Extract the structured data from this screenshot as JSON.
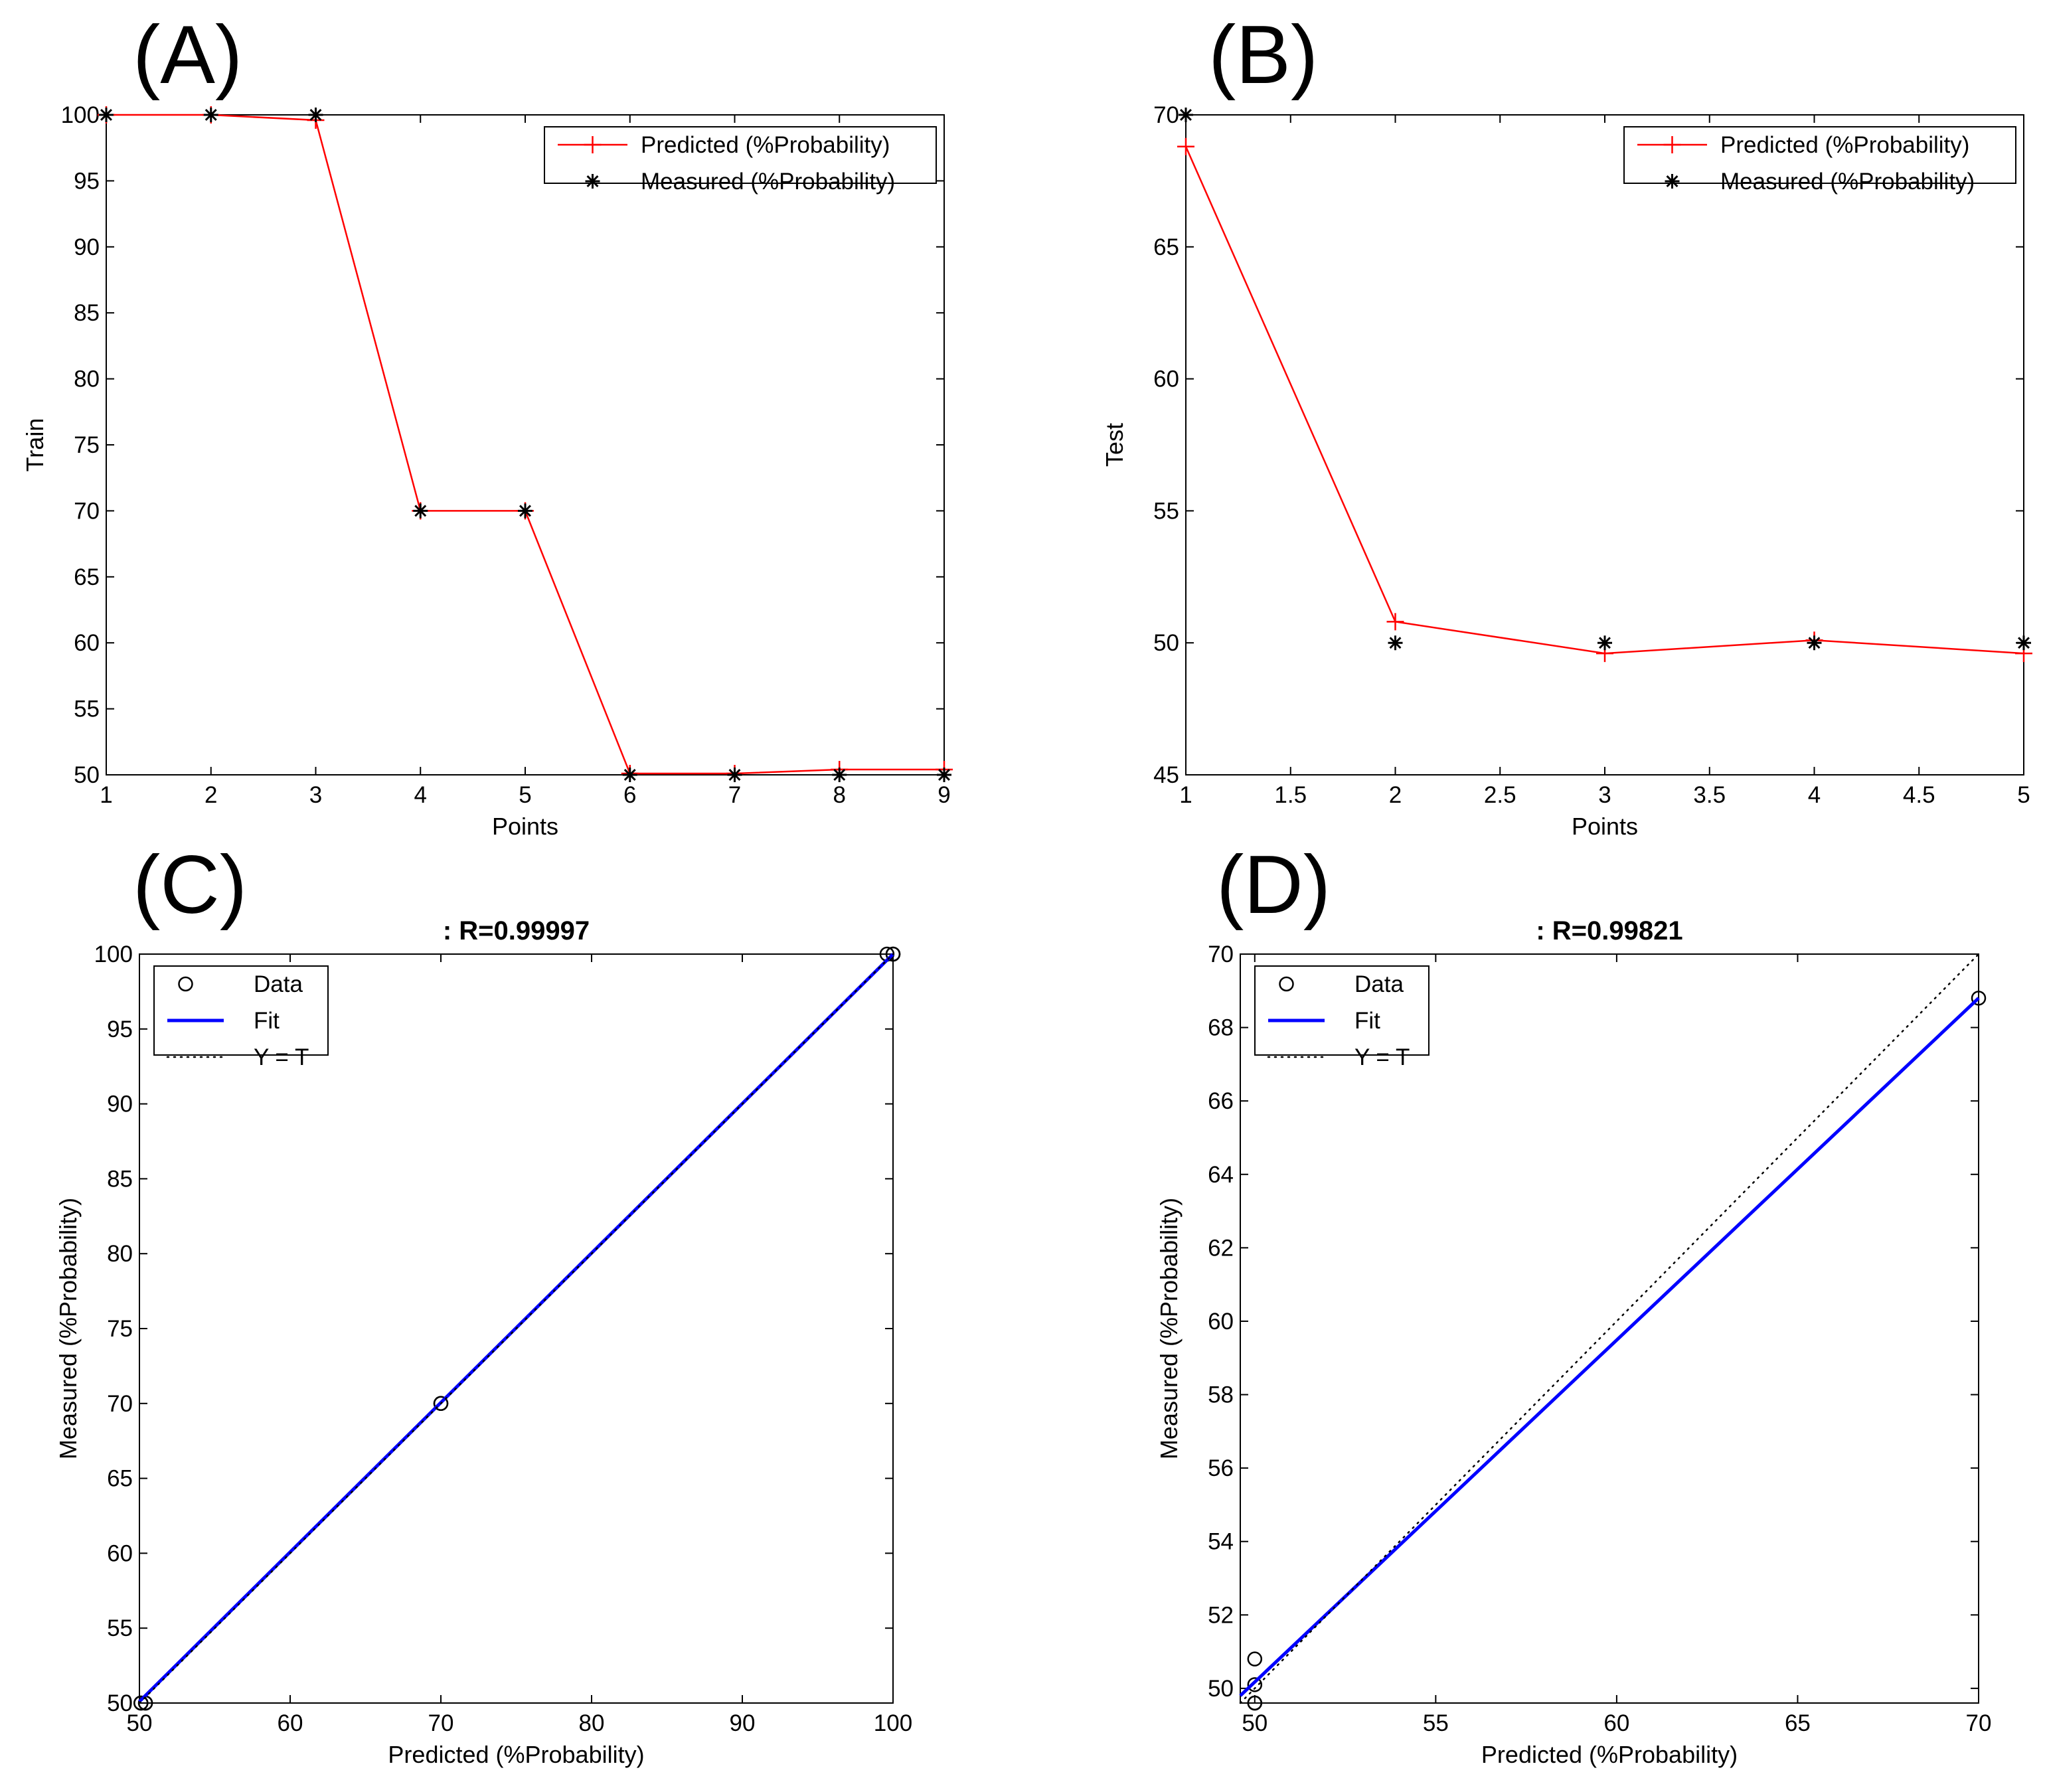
{
  "figure": {
    "background": "#ffffff"
  },
  "colors": {
    "predicted": "#ff0000",
    "measured": "#000000",
    "fit": "#0000ff",
    "ident": "#000000",
    "data": "#000000"
  },
  "chart_data": [
    {
      "id": "A",
      "type": "line",
      "panel_label": "(A)",
      "title": "",
      "xlabel": "Points",
      "ylabel": "Train",
      "xlim": [
        1,
        9
      ],
      "ylim": [
        50,
        100
      ],
      "xticks": [
        1,
        2,
        3,
        4,
        5,
        6,
        7,
        8,
        9
      ],
      "xtick_labels": [
        "1",
        "2",
        "3",
        "4",
        "5",
        "6",
        "7",
        "8",
        "9"
      ],
      "yticks": [
        50,
        55,
        60,
        65,
        70,
        75,
        80,
        85,
        90,
        95,
        100
      ],
      "ytick_labels": [
        "50",
        "55",
        "60",
        "65",
        "70",
        "75",
        "80",
        "85",
        "90",
        "95",
        "100"
      ],
      "grid": false,
      "legend_position": "top-right",
      "series": [
        {
          "name": "Predicted (%Probability)",
          "style": "line-plus",
          "color": "#ff0000",
          "x": [
            1,
            2,
            3,
            4,
            5,
            6,
            7,
            8,
            9
          ],
          "y": [
            100,
            100,
            99.6,
            70,
            70,
            50.1,
            50.1,
            50.4,
            50.4
          ]
        },
        {
          "name": "Measured (%Probability)",
          "style": "star",
          "color": "#000000",
          "x": [
            1,
            2,
            3,
            4,
            5,
            6,
            7,
            8,
            9
          ],
          "y": [
            100,
            100,
            100,
            70,
            70,
            50,
            50,
            50,
            50
          ]
        }
      ]
    },
    {
      "id": "B",
      "type": "line",
      "panel_label": "(B)",
      "title": "",
      "xlabel": "Points",
      "ylabel": "Test",
      "xlim": [
        1,
        5
      ],
      "ylim": [
        45,
        70
      ],
      "xticks": [
        1,
        1.5,
        2,
        2.5,
        3,
        3.5,
        4,
        4.5,
        5
      ],
      "xtick_labels": [
        "1",
        "1.5",
        "2",
        "2.5",
        "3",
        "3.5",
        "4",
        "4.5",
        "5"
      ],
      "yticks": [
        45,
        50,
        55,
        60,
        65,
        70
      ],
      "ytick_labels": [
        "45",
        "50",
        "55",
        "60",
        "65",
        "70"
      ],
      "grid": false,
      "legend_position": "top-right",
      "series": [
        {
          "name": "Predicted (%Probability)",
          "style": "line-plus",
          "color": "#ff0000",
          "x": [
            1,
            2,
            3,
            4,
            5
          ],
          "y": [
            68.8,
            50.8,
            49.6,
            50.1,
            49.6
          ]
        },
        {
          "name": "Measured (%Probability)",
          "style": "star",
          "color": "#000000",
          "x": [
            1,
            2,
            3,
            4,
            5
          ],
          "y": [
            70,
            50,
            50,
            50,
            50
          ]
        }
      ]
    },
    {
      "id": "C",
      "type": "scatter",
      "panel_label": "(C)",
      "title": ": R=0.99997",
      "xlabel": "Predicted (%Probability)",
      "ylabel": "Measured (%Probability)",
      "xlim": [
        50,
        100
      ],
      "ylim": [
        50,
        100
      ],
      "xticks": [
        50,
        60,
        70,
        80,
        90,
        100
      ],
      "xtick_labels": [
        "50",
        "60",
        "70",
        "80",
        "90",
        "100"
      ],
      "yticks": [
        50,
        55,
        60,
        65,
        70,
        75,
        80,
        85,
        90,
        95,
        100
      ],
      "ytick_labels": [
        "50",
        "55",
        "60",
        "65",
        "70",
        "75",
        "80",
        "85",
        "90",
        "95",
        "100"
      ],
      "grid": false,
      "legend_position": "top-left",
      "series": [
        {
          "name": "Data",
          "style": "circle",
          "color": "#000000",
          "x": [
            50.1,
            50.1,
            50.4,
            50.4,
            70,
            70,
            99.6,
            100,
            100
          ],
          "y": [
            50,
            50,
            50,
            50,
            70,
            70,
            100,
            100,
            100
          ]
        },
        {
          "name": "Fit",
          "style": "line",
          "color": "#0000ff",
          "x": [
            50,
            100
          ],
          "y": [
            50.1,
            100
          ]
        },
        {
          "name": "Y = T",
          "style": "dotted",
          "color": "#000000",
          "x": [
            50,
            100
          ],
          "y": [
            50,
            100
          ]
        }
      ]
    },
    {
      "id": "D",
      "type": "scatter",
      "panel_label": "(D)",
      "title": ": R=0.99821",
      "xlabel": "Predicted (%Probability)",
      "ylabel": "Measured (%Probability)",
      "xlim": [
        49.6,
        70
      ],
      "ylim": [
        49.6,
        70
      ],
      "xticks": [
        50,
        55,
        60,
        65,
        70
      ],
      "xtick_labels": [
        "50",
        "55",
        "60",
        "65",
        "70"
      ],
      "yticks": [
        50,
        52,
        54,
        56,
        58,
        60,
        62,
        64,
        66,
        68,
        70
      ],
      "ytick_labels": [
        "50",
        "52",
        "54",
        "56",
        "58",
        "60",
        "62",
        "64",
        "66",
        "68",
        "70"
      ],
      "grid": false,
      "legend_position": "top-left",
      "series": [
        {
          "name": "Data",
          "style": "circle",
          "color": "#000000",
          "x": [
            50,
            50,
            50,
            50,
            70
          ],
          "y": [
            50.8,
            50.1,
            49.6,
            49.6,
            68.8
          ]
        },
        {
          "name": "Fit",
          "style": "line",
          "color": "#0000ff",
          "x": [
            49.6,
            70
          ],
          "y": [
            49.8,
            68.8
          ]
        },
        {
          "name": "Y = T",
          "style": "dotted",
          "color": "#000000",
          "x": [
            49.6,
            70
          ],
          "y": [
            49.6,
            70
          ]
        }
      ]
    }
  ]
}
